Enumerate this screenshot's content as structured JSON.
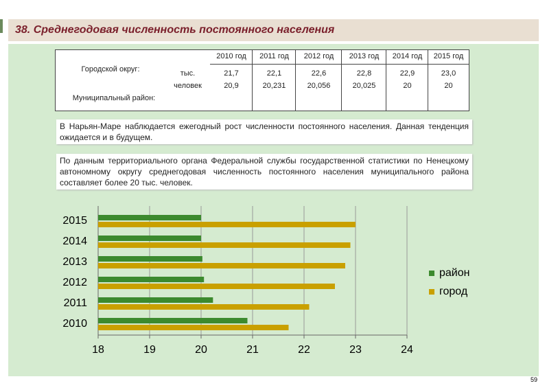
{
  "header": {
    "title": "38. Среднегодовая численность постоянного населения"
  },
  "table": {
    "columns": [
      "2010 год",
      "2011 год",
      "2012 год",
      "2013 год",
      "2014 год",
      "2015 год"
    ],
    "row_labels": [
      "Городской округ:",
      "Муниципальный район:"
    ],
    "unit": [
      "тыс.",
      "человек"
    ],
    "rows": [
      [
        "21,7",
        "22,1",
        "22,6",
        "22,8",
        "22,9",
        "23,0"
      ],
      [
        "20,9",
        "20,231",
        "20,056",
        "20,025",
        "20",
        "20"
      ]
    ]
  },
  "paragraphs": [
    "В Нарьян-Маре наблюдается ежегодный рост численности постоянного населения. Данная тенденция ожидается и в будущем.",
    "По данным территориального органа Федеральной службы государственной статистики по Ненецкому автономному округу среднегодовая численность постоянного населения муниципального района составляет более 20 тыс. человек."
  ],
  "chart_data": {
    "type": "bar",
    "orientation": "horizontal",
    "categories": [
      "2010",
      "2011",
      "2012",
      "2013",
      "2014",
      "2015"
    ],
    "series": [
      {
        "name": "район",
        "color": "#3c8a2e",
        "values": [
          20.9,
          20.231,
          20.056,
          20.025,
          20,
          20
        ]
      },
      {
        "name": "город",
        "color": "#c9a000",
        "values": [
          21.7,
          22.1,
          22.6,
          22.8,
          22.9,
          23.0
        ]
      }
    ],
    "xlim": [
      18,
      24
    ],
    "xticks": [
      18,
      19,
      20,
      21,
      22,
      23,
      24
    ],
    "grid": true,
    "legend": "right"
  },
  "page_number": "59"
}
